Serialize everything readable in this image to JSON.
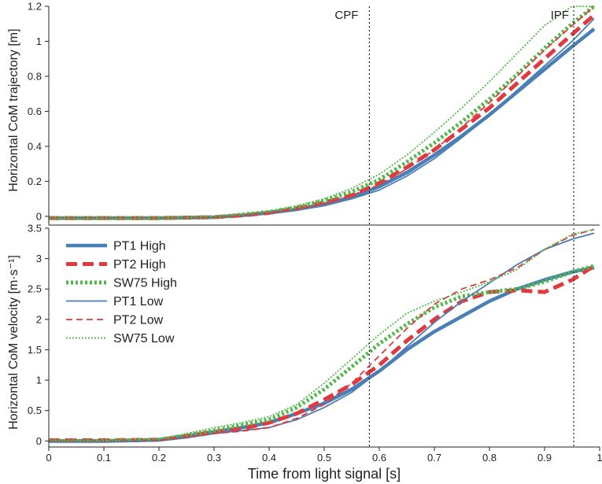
{
  "chart_data": [
    {
      "type": "line",
      "panel": "top",
      "ylabel": "Horizontal CoM trajectory [m]",
      "xlim": [
        0,
        1
      ],
      "ylim": [
        -0.05,
        1.2
      ],
      "yticks": [
        0,
        0.2,
        0.4,
        0.6,
        0.8,
        1,
        1.2
      ],
      "ytick_labels": [
        "0",
        "0.2",
        "0.4",
        "0.6",
        "0.8",
        "1",
        "1.2"
      ],
      "events": [
        {
          "name": "CPF",
          "x": 0.582
        },
        {
          "name": "IPF",
          "x": 0.953
        }
      ],
      "series": [
        {
          "name": "PT1 High",
          "color": "#4a7fb5",
          "style": "thick-solid",
          "x": [
            0,
            0.1,
            0.2,
            0.3,
            0.35,
            0.4,
            0.45,
            0.5,
            0.55,
            0.6,
            0.65,
            0.7,
            0.75,
            0.8,
            0.85,
            0.9,
            0.95,
            0.99
          ],
          "values": [
            -0.01,
            -0.01,
            -0.01,
            -0.005,
            0.005,
            0.02,
            0.04,
            0.07,
            0.11,
            0.17,
            0.25,
            0.35,
            0.46,
            0.58,
            0.71,
            0.84,
            0.97,
            1.07
          ]
        },
        {
          "name": "PT2 High",
          "color": "#e0393e",
          "style": "thick-dash",
          "x": [
            0,
            0.1,
            0.2,
            0.3,
            0.35,
            0.4,
            0.45,
            0.5,
            0.55,
            0.6,
            0.65,
            0.7,
            0.75,
            0.8,
            0.85,
            0.9,
            0.95,
            0.99
          ],
          "values": [
            -0.01,
            -0.01,
            -0.01,
            -0.005,
            0.005,
            0.02,
            0.045,
            0.08,
            0.12,
            0.19,
            0.28,
            0.38,
            0.5,
            0.62,
            0.76,
            0.9,
            1.04,
            1.15
          ]
        },
        {
          "name": "SW75 High",
          "color": "#4fb848",
          "style": "thick-dot",
          "x": [
            0,
            0.1,
            0.2,
            0.3,
            0.35,
            0.4,
            0.45,
            0.5,
            0.55,
            0.6,
            0.65,
            0.7,
            0.75,
            0.8,
            0.85,
            0.9,
            0.95,
            0.99
          ],
          "values": [
            -0.01,
            -0.01,
            -0.01,
            -0.005,
            0.01,
            0.025,
            0.05,
            0.09,
            0.14,
            0.21,
            0.31,
            0.42,
            0.54,
            0.67,
            0.81,
            0.96,
            1.1,
            1.2
          ]
        },
        {
          "name": "PT1 Low",
          "color": "#4a7fb5",
          "style": "thin-solid",
          "x": [
            0,
            0.1,
            0.2,
            0.3,
            0.35,
            0.4,
            0.45,
            0.5,
            0.55,
            0.6,
            0.65,
            0.7,
            0.75,
            0.8,
            0.85,
            0.9,
            0.95,
            0.99
          ],
          "values": [
            -0.01,
            -0.01,
            -0.01,
            -0.005,
            0.005,
            0.02,
            0.035,
            0.06,
            0.1,
            0.15,
            0.23,
            0.33,
            0.45,
            0.58,
            0.72,
            0.86,
            1.0,
            1.13
          ]
        },
        {
          "name": "PT2 Low",
          "color": "#e0393e",
          "style": "thin-dash",
          "x": [
            0,
            0.1,
            0.2,
            0.3,
            0.35,
            0.4,
            0.45,
            0.5,
            0.55,
            0.6,
            0.65,
            0.7,
            0.75,
            0.8,
            0.85,
            0.9,
            0.95,
            0.99
          ],
          "values": [
            -0.01,
            -0.01,
            -0.01,
            -0.005,
            0.005,
            0.02,
            0.04,
            0.07,
            0.12,
            0.18,
            0.27,
            0.38,
            0.51,
            0.65,
            0.8,
            0.95,
            1.09,
            1.2
          ]
        },
        {
          "name": "SW75 Low",
          "color": "#4fb848",
          "style": "thin-dot",
          "x": [
            0,
            0.1,
            0.2,
            0.3,
            0.35,
            0.4,
            0.45,
            0.5,
            0.55,
            0.6,
            0.65,
            0.7,
            0.75,
            0.8,
            0.85,
            0.9,
            0.95,
            0.99
          ],
          "values": [
            -0.01,
            -0.01,
            -0.01,
            0,
            0.01,
            0.03,
            0.06,
            0.1,
            0.16,
            0.24,
            0.35,
            0.48,
            0.62,
            0.77,
            0.93,
            1.09,
            1.2,
            1.2
          ]
        }
      ]
    },
    {
      "type": "line",
      "panel": "bottom",
      "title": "",
      "xlabel": "Time from light signal [s]",
      "ylabel": "Horizontal CoM velocity [m·s⁻¹]",
      "xlim": [
        0,
        1
      ],
      "ylim": [
        -0.1,
        3.5
      ],
      "xticks": [
        0,
        0.1,
        0.2,
        0.3,
        0.4,
        0.5,
        0.6,
        0.7,
        0.8,
        0.9,
        1
      ],
      "xtick_labels": [
        "0",
        "0.1",
        "0.2",
        "0.3",
        "0.4",
        "0.5",
        "0.6",
        "0.7",
        "0.8",
        "0.9",
        "1"
      ],
      "yticks": [
        0,
        0.5,
        1,
        1.5,
        2,
        2.5,
        3,
        3.5
      ],
      "ytick_labels": [
        "0",
        "0.5",
        "1",
        "1.5",
        "2",
        "2.5",
        "3",
        "3.5"
      ],
      "legend_position": "top-left",
      "events": [
        {
          "name": "CPF",
          "x": 0.582
        },
        {
          "name": "IPF",
          "x": 0.953
        }
      ],
      "series": [
        {
          "name": "PT1 High",
          "color": "#4a7fb5",
          "style": "thick-solid",
          "x": [
            0,
            0.1,
            0.2,
            0.25,
            0.3,
            0.35,
            0.4,
            0.45,
            0.5,
            0.55,
            0.6,
            0.65,
            0.7,
            0.75,
            0.8,
            0.85,
            0.9,
            0.95,
            0.99
          ],
          "values": [
            0.0,
            0.0,
            0.02,
            0.08,
            0.15,
            0.22,
            0.3,
            0.45,
            0.62,
            0.85,
            1.15,
            1.5,
            1.8,
            2.05,
            2.3,
            2.5,
            2.65,
            2.78,
            2.85
          ]
        },
        {
          "name": "PT2 High",
          "color": "#e0393e",
          "style": "thick-dash",
          "x": [
            0,
            0.1,
            0.2,
            0.25,
            0.3,
            0.35,
            0.4,
            0.45,
            0.5,
            0.55,
            0.6,
            0.65,
            0.7,
            0.75,
            0.8,
            0.85,
            0.9,
            0.95,
            0.99
          ],
          "values": [
            0.01,
            0.01,
            0.02,
            0.08,
            0.15,
            0.2,
            0.3,
            0.45,
            0.68,
            0.93,
            1.25,
            1.65,
            2.0,
            2.3,
            2.45,
            2.48,
            2.45,
            2.65,
            2.88
          ]
        },
        {
          "name": "SW75 High",
          "color": "#4fb848",
          "style": "thick-dot",
          "x": [
            0,
            0.1,
            0.2,
            0.25,
            0.3,
            0.35,
            0.4,
            0.45,
            0.5,
            0.55,
            0.6,
            0.65,
            0.7,
            0.75,
            0.8,
            0.85,
            0.9,
            0.95,
            0.99
          ],
          "values": [
            0.0,
            0.0,
            0.02,
            0.09,
            0.17,
            0.26,
            0.35,
            0.55,
            0.85,
            1.22,
            1.6,
            1.92,
            2.2,
            2.38,
            2.45,
            2.5,
            2.62,
            2.78,
            2.88
          ]
        },
        {
          "name": "PT1 Low",
          "color": "#4a7fb5",
          "style": "thin-solid",
          "x": [
            0,
            0.1,
            0.2,
            0.25,
            0.3,
            0.35,
            0.4,
            0.45,
            0.5,
            0.55,
            0.6,
            0.65,
            0.7,
            0.75,
            0.8,
            0.85,
            0.9,
            0.95,
            0.99
          ],
          "values": [
            -0.02,
            -0.02,
            0.0,
            0.05,
            0.12,
            0.17,
            0.22,
            0.35,
            0.55,
            0.8,
            1.15,
            1.55,
            1.95,
            2.3,
            2.6,
            2.9,
            3.15,
            3.32,
            3.42
          ]
        },
        {
          "name": "PT2 Low",
          "color": "#e0393e",
          "style": "thin-dash",
          "x": [
            0,
            0.1,
            0.2,
            0.25,
            0.3,
            0.35,
            0.4,
            0.45,
            0.5,
            0.55,
            0.6,
            0.65,
            0.7,
            0.75,
            0.8,
            0.85,
            0.9,
            0.95,
            0.99
          ],
          "values": [
            0.0,
            0.0,
            0.01,
            0.06,
            0.12,
            0.16,
            0.22,
            0.37,
            0.6,
            0.95,
            1.4,
            1.85,
            2.25,
            2.5,
            2.65,
            2.85,
            3.15,
            3.38,
            3.48
          ]
        },
        {
          "name": "SW75 Low",
          "color": "#4fb848",
          "style": "thin-dot",
          "x": [
            0,
            0.1,
            0.2,
            0.25,
            0.3,
            0.35,
            0.4,
            0.45,
            0.5,
            0.55,
            0.6,
            0.65,
            0.7,
            0.75,
            0.8,
            0.85,
            0.9,
            0.95,
            0.99
          ],
          "values": [
            0.0,
            0.0,
            0.03,
            0.12,
            0.22,
            0.3,
            0.4,
            0.6,
            0.95,
            1.35,
            1.75,
            2.1,
            2.3,
            2.45,
            2.62,
            2.82,
            3.15,
            3.4,
            3.48
          ]
        }
      ]
    }
  ]
}
